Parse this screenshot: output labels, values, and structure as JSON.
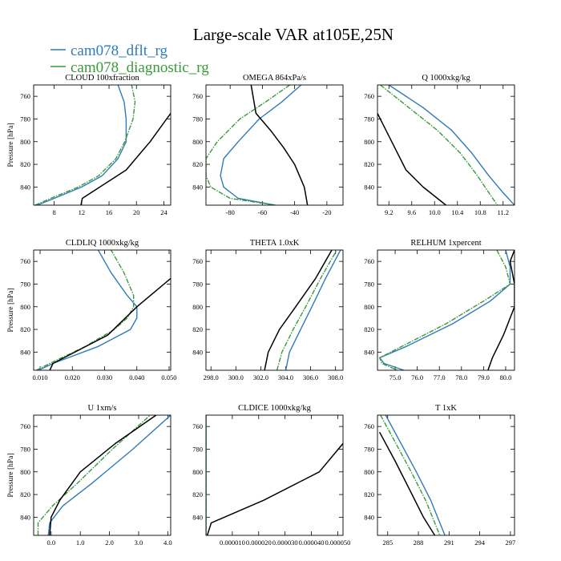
{
  "figure": {
    "title": "Large-scale VAR at105E,25N",
    "legend": [
      {
        "label": "cam078_dflt_rg",
        "color": "#2f7bb8"
      },
      {
        "label": "cam078_diagnostic_rg",
        "color": "#3a9a3a"
      }
    ]
  },
  "colors": {
    "obs": "#000000",
    "dflt": "#2f7bb8",
    "diag": "#3a9a3a"
  },
  "chart_data": [
    {
      "type": "line",
      "title": "CLOUD 100xfraction",
      "ylabel": "Pressure [hPa]",
      "xlim": [
        5,
        25
      ],
      "ylim": [
        856,
        750
      ],
      "y_reversed": true,
      "xticks": [
        8,
        12,
        16,
        20,
        24
      ],
      "xticklabels": [
        "8",
        "12",
        "16",
        "20",
        "24"
      ],
      "yticks": [
        760,
        780,
        800,
        820,
        840
      ],
      "yticklabels": [
        "760",
        "780",
        "800",
        "820",
        "840"
      ],
      "series": [
        {
          "key": "obs",
          "x": [
            11.9,
            12.1,
            18.5,
            22,
            25
          ],
          "y": [
            856,
            850,
            825,
            800,
            775
          ]
        },
        {
          "key": "dflt",
          "x": [
            5.5,
            8,
            12,
            15,
            17.3,
            18.5,
            18.5,
            18.2,
            17.3
          ],
          "y": [
            856,
            850,
            840,
            830,
            815,
            800,
            780,
            765,
            750
          ]
        },
        {
          "key": "diag",
          "x": [
            5.2,
            7.5,
            11.5,
            14.5,
            17,
            18.3,
            19.5,
            19.8,
            19.3
          ],
          "y": [
            856,
            850,
            840,
            830,
            815,
            800,
            780,
            765,
            750
          ]
        }
      ]
    },
    {
      "type": "line",
      "title": "OMEGA 864xPa/s",
      "ylabel": "",
      "xlim": [
        -95,
        -10
      ],
      "ylim": [
        856,
        750
      ],
      "y_reversed": true,
      "xticks": [
        -80,
        -60,
        -40,
        -20
      ],
      "xticklabels": [
        "-80",
        "-60",
        "-40",
        "-20"
      ],
      "yticks": [
        760,
        780,
        800,
        820,
        840
      ],
      "yticklabels": [
        "760",
        "780",
        "800",
        "820",
        "840"
      ],
      "series": [
        {
          "key": "obs",
          "x": [
            -67,
            -64,
            -55,
            -47,
            -40,
            -34,
            -32
          ],
          "y": [
            750,
            775,
            790,
            805,
            820,
            840,
            856
          ]
        },
        {
          "key": "dflt",
          "x": [
            -36,
            -48,
            -62,
            -75,
            -84,
            -86,
            -84,
            -75,
            -52
          ],
          "y": [
            750,
            765,
            780,
            800,
            815,
            830,
            840,
            850,
            856
          ]
        },
        {
          "key": "diag",
          "x": [
            -43,
            -58,
            -74,
            -88,
            -95,
            -95,
            -92,
            -80,
            -52
          ],
          "y": [
            750,
            765,
            780,
            800,
            815,
            830,
            840,
            850,
            856
          ]
        }
      ]
    },
    {
      "type": "line",
      "title": "Q 1000xkg/kg",
      "ylabel": "",
      "xlim": [
        9.0,
        11.4
      ],
      "ylim": [
        856,
        750
      ],
      "y_reversed": true,
      "xticks": [
        9.2,
        9.6,
        10.0,
        10.4,
        10.8,
        11.2
      ],
      "xticklabels": [
        "9.2",
        "9.6",
        "10.0",
        "10.4",
        "10.8",
        "11.2"
      ],
      "yticks": [
        760,
        780,
        800,
        820,
        840
      ],
      "yticklabels": [
        "760",
        "780",
        "800",
        "820",
        "840"
      ],
      "series": [
        {
          "key": "obs",
          "x": [
            9.0,
            9.25,
            9.5,
            9.8,
            10.05,
            10.2
          ],
          "y": [
            775,
            800,
            825,
            840,
            850,
            856
          ]
        },
        {
          "key": "dflt",
          "x": [
            9.2,
            9.8,
            10.3,
            10.65,
            10.95,
            11.2,
            11.4
          ],
          "y": [
            750,
            770,
            790,
            810,
            830,
            845,
            856
          ]
        },
        {
          "key": "diag",
          "x": [
            9.05,
            9.55,
            10.05,
            10.45,
            10.75,
            10.95,
            11.1
          ],
          "y": [
            750,
            770,
            790,
            810,
            830,
            845,
            856
          ]
        }
      ]
    },
    {
      "type": "line",
      "title": "CLDLIQ 1000xkg/kg",
      "ylabel": "Pressure [hPa]",
      "xlim": [
        0.008,
        0.0505
      ],
      "ylim": [
        856,
        750
      ],
      "y_reversed": true,
      "xticks": [
        0.01,
        0.02,
        0.03,
        0.04,
        0.05
      ],
      "xticklabels": [
        "0.010",
        "0.020",
        "0.030",
        "0.040",
        "0.050"
      ],
      "yticks": [
        760,
        780,
        800,
        820,
        840
      ],
      "yticklabels": [
        "760",
        "780",
        "800",
        "820",
        "840"
      ],
      "series": [
        {
          "key": "obs",
          "x": [
            0.013,
            0.014,
            0.031,
            0.04,
            0.0505
          ],
          "y": [
            856,
            850,
            825,
            800,
            775
          ]
        },
        {
          "key": "dflt",
          "x": [
            0.0095,
            0.014,
            0.028,
            0.038,
            0.04,
            0.04,
            0.037,
            0.032,
            0.028
          ],
          "y": [
            856,
            850,
            835,
            820,
            810,
            800,
            790,
            770,
            750
          ]
        },
        {
          "key": "diag",
          "x": [
            0.0088,
            0.013,
            0.024,
            0.033,
            0.037,
            0.039,
            0.039,
            0.036,
            0.032
          ],
          "y": [
            856,
            850,
            835,
            820,
            810,
            800,
            790,
            770,
            750
          ]
        }
      ]
    },
    {
      "type": "line",
      "title": "THETA 1.0xK",
      "ylabel": "",
      "xlim": [
        297.6,
        308.6
      ],
      "ylim": [
        856,
        750
      ],
      "y_reversed": true,
      "xticks": [
        298,
        300,
        302,
        304,
        306,
        308
      ],
      "xticklabels": [
        "298.0",
        "300.0",
        "302.0",
        "304.0",
        "306.0",
        "308.0"
      ],
      "yticks": [
        760,
        780,
        800,
        820,
        840
      ],
      "yticklabels": [
        "760",
        "780",
        "800",
        "820",
        "840"
      ],
      "series": [
        {
          "key": "obs",
          "x": [
            302.3,
            302.6,
            303.5,
            304.8,
            306.4,
            307.7
          ],
          "y": [
            856,
            840,
            820,
            800,
            775,
            750
          ]
        },
        {
          "key": "dflt",
          "x": [
            304.0,
            304.3,
            305.2,
            306.1,
            307.2,
            308.4
          ],
          "y": [
            856,
            840,
            820,
            800,
            775,
            750
          ]
        },
        {
          "key": "diag",
          "x": [
            303.3,
            303.7,
            304.6,
            305.6,
            306.8,
            308.1
          ],
          "y": [
            856,
            840,
            820,
            800,
            775,
            750
          ]
        }
      ]
    },
    {
      "type": "line",
      "title": "RELHUM 1xpercent",
      "ylabel": "",
      "xlim": [
        74.2,
        80.4
      ],
      "ylim": [
        856,
        750
      ],
      "y_reversed": true,
      "xticks": [
        75,
        76,
        77,
        78,
        79,
        80
      ],
      "xticklabels": [
        "75.0",
        "76.0",
        "77.0",
        "78.0",
        "79.0",
        "80.0"
      ],
      "yticks": [
        760,
        780,
        800,
        820,
        840
      ],
      "yticklabels": [
        "760",
        "780",
        "800",
        "820",
        "840"
      ],
      "series": [
        {
          "key": "obs",
          "x": [
            80.4,
            80.2,
            80.4,
            80.4,
            79.9,
            79.4,
            79.2
          ],
          "y": [
            750,
            760,
            780,
            800,
            825,
            845,
            856
          ]
        },
        {
          "key": "dflt",
          "x": [
            80.0,
            80.2,
            80.2,
            79.3,
            77.6,
            75.5,
            74.3,
            74.5,
            75.4
          ],
          "y": [
            750,
            765,
            780,
            795,
            815,
            835,
            845,
            850,
            856
          ]
        },
        {
          "key": "diag",
          "x": [
            79.6,
            80.0,
            80.2,
            79.0,
            77.3,
            75.3,
            74.3,
            74.4,
            75.1
          ],
          "y": [
            750,
            765,
            780,
            795,
            815,
            835,
            845,
            850,
            856
          ]
        }
      ]
    },
    {
      "type": "line",
      "title": "U 1xm/s",
      "ylabel": "Pressure [hPa]",
      "xlim": [
        -0.6,
        4.1
      ],
      "ylim": [
        856,
        750
      ],
      "y_reversed": true,
      "xticks": [
        0,
        1,
        2,
        3,
        4
      ],
      "xticklabels": [
        "0.0",
        "1.0",
        "2.0",
        "3.0",
        "4.0"
      ],
      "yticks": [
        760,
        780,
        800,
        820,
        840
      ],
      "yticklabels": [
        "760",
        "780",
        "800",
        "820",
        "840"
      ],
      "series": [
        {
          "key": "obs",
          "x": [
            -0.05,
            0.0,
            0.3,
            1.0,
            2.2,
            3.6
          ],
          "y": [
            856,
            840,
            825,
            800,
            775,
            750
          ]
        },
        {
          "key": "dflt",
          "x": [
            -0.1,
            -0.05,
            0.4,
            1.4,
            2.8,
            4.1
          ],
          "y": [
            856,
            845,
            830,
            810,
            780,
            750
          ]
        },
        {
          "key": "diag",
          "x": [
            -0.45,
            -0.45,
            0.05,
            0.9,
            2.1,
            3.4
          ],
          "y": [
            856,
            845,
            830,
            810,
            780,
            750
          ]
        }
      ]
    },
    {
      "type": "line",
      "title": "CLDICE 1000xkg/kg",
      "ylabel": "",
      "xlim": [
        0,
        5.2e-05
      ],
      "ylim": [
        856,
        750
      ],
      "y_reversed": true,
      "xticks": [
        1e-05,
        2e-05,
        3e-05,
        4e-05,
        5e-05
      ],
      "xticklabels": [
        "0.000010",
        "0.000020",
        "0.000030",
        "0.000040",
        "0.000050"
      ],
      "yticks": [
        760,
        780,
        800,
        820,
        840
      ],
      "yticklabels": [
        "760",
        "780",
        "800",
        "820",
        "840"
      ],
      "series": [
        {
          "key": "obs",
          "x": [
            5e-07,
            2e-06,
            2.2e-05,
            4.3e-05,
            5.2e-05
          ],
          "y": [
            856,
            845,
            825,
            800,
            775
          ]
        },
        {
          "key": "dflt",
          "x": [
            0,
            0
          ],
          "y": [
            750,
            856
          ]
        },
        {
          "key": "diag",
          "x": [
            0,
            0
          ],
          "y": [
            750,
            856
          ]
        }
      ]
    },
    {
      "type": "line",
      "title": "T 1xK",
      "ylabel": "",
      "xlim": [
        284,
        297.4
      ],
      "ylim": [
        856,
        750
      ],
      "y_reversed": true,
      "xticks": [
        285,
        288,
        291,
        294,
        297
      ],
      "xticklabels": [
        "285",
        "288",
        "291",
        "294",
        "297"
      ],
      "yticks": [
        760,
        780,
        800,
        820,
        840
      ],
      "yticklabels": [
        "760",
        "780",
        "800",
        "820",
        "840"
      ],
      "series": [
        {
          "key": "obs",
          "x": [
            284.2,
            285.7,
            287.1,
            288.5,
            289.6
          ],
          "y": [
            765,
            790,
            815,
            840,
            856
          ]
        },
        {
          "key": "dflt",
          "x": [
            284.8,
            286.3,
            287.8,
            289.2,
            290.1,
            290.6
          ],
          "y": [
            750,
            775,
            800,
            825,
            845,
            856
          ]
        },
        {
          "key": "diag",
          "x": [
            284.3,
            285.8,
            287.3,
            288.7,
            289.6,
            290.1
          ],
          "y": [
            750,
            775,
            800,
            825,
            845,
            856
          ]
        }
      ]
    }
  ]
}
